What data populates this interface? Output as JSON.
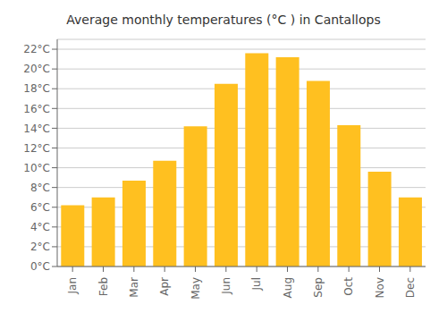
{
  "chart_data": {
    "type": "bar",
    "title": "Average monthly temperatures (°C ) in Cantallops",
    "categories": [
      "Jan",
      "Feb",
      "Mar",
      "Apr",
      "May",
      "Jun",
      "Jul",
      "Aug",
      "Sep",
      "Oct",
      "Nov",
      "Dec"
    ],
    "values": [
      6.2,
      7.0,
      8.7,
      10.7,
      14.2,
      18.5,
      21.6,
      21.2,
      18.8,
      14.3,
      9.6,
      7.0
    ],
    "color": "#FFC020",
    "ylim": [
      0,
      23
    ],
    "yticks": [
      {
        "value": 0,
        "label": "0°C"
      },
      {
        "value": 2,
        "label": "2°C"
      },
      {
        "value": 4,
        "label": "4°C"
      },
      {
        "value": 6,
        "label": "6°C"
      },
      {
        "value": 8,
        "label": "8°C"
      },
      {
        "value": 10,
        "label": "10°C"
      },
      {
        "value": 12,
        "label": "12°C"
      },
      {
        "value": 14,
        "label": "14°C"
      },
      {
        "value": 16,
        "label": "16°C"
      },
      {
        "value": 18,
        "label": "18°C"
      },
      {
        "value": 20,
        "label": "20°C"
      },
      {
        "value": 22,
        "label": "22°C"
      }
    ],
    "grid": true
  }
}
